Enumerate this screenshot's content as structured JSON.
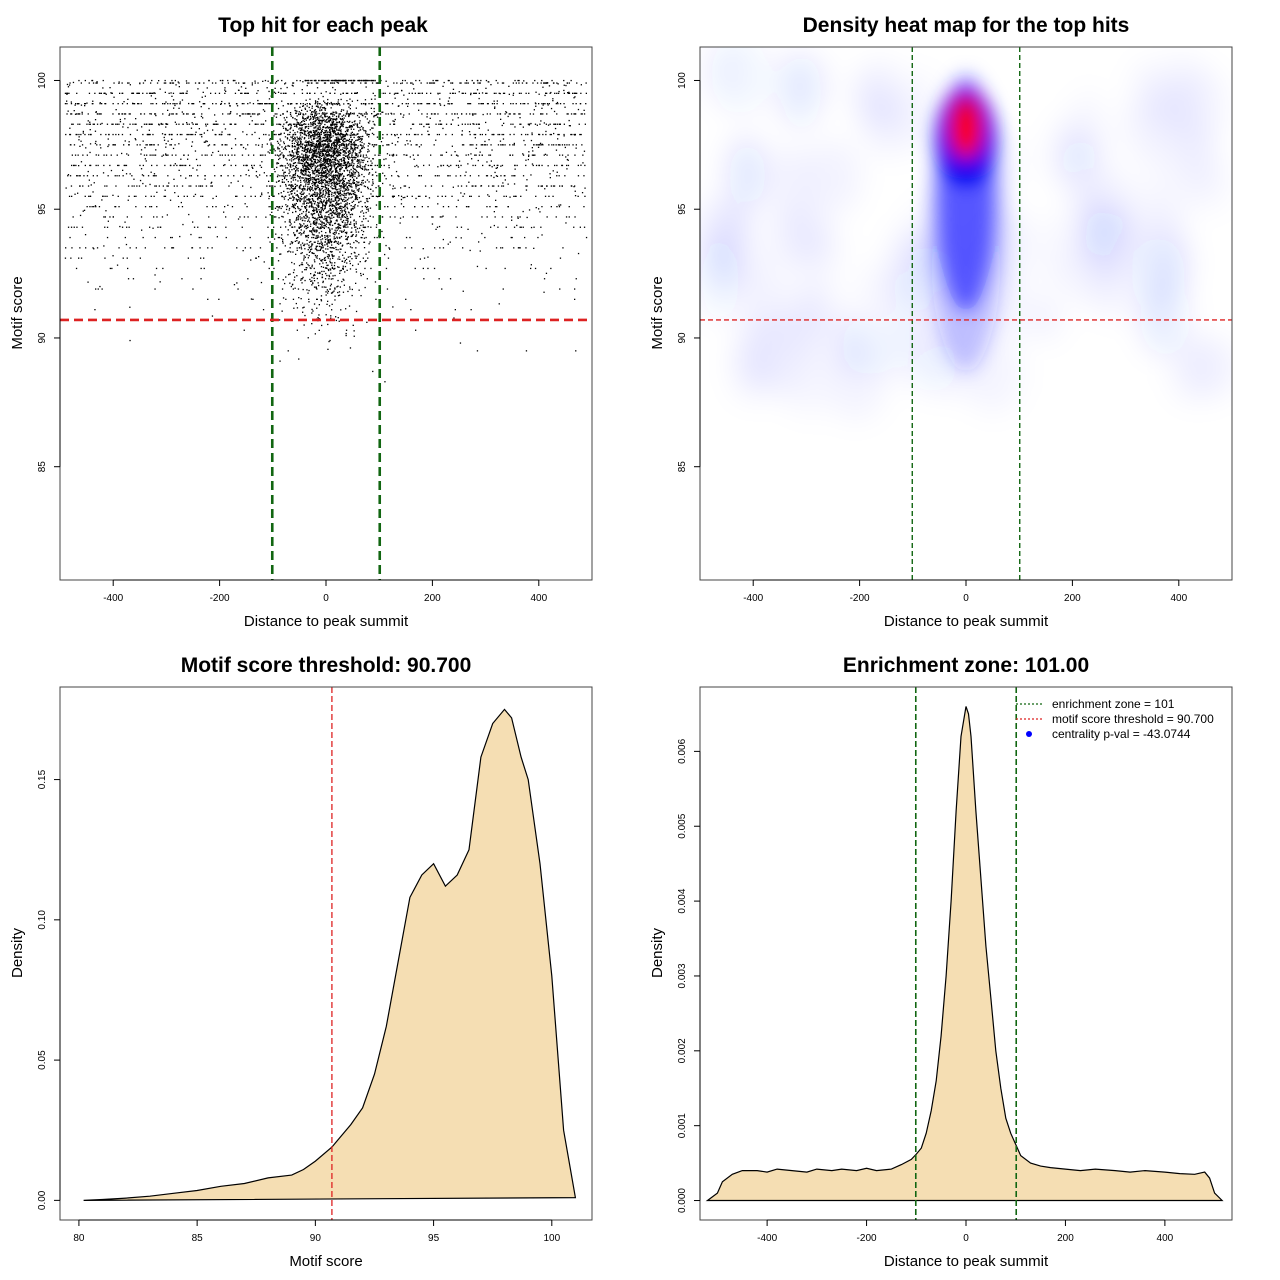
{
  "chart_data": [
    {
      "type": "scatter",
      "title": "Top hit for each peak",
      "xlabel": "Distance to peak summit",
      "ylabel": "Motif score",
      "xlim": [
        -500,
        500
      ],
      "ylim": [
        80.6,
        101.3
      ],
      "xticks": [
        "-400",
        "-200",
        "0",
        "200",
        "400"
      ],
      "yticks": [
        "85",
        "90",
        "95",
        "100"
      ],
      "hlines": [
        {
          "y": 90.7,
          "color": "#dd2222",
          "style": "dashed"
        }
      ],
      "vlines": [
        {
          "x": -101,
          "color": "#116611",
          "style": "dashed"
        },
        {
          "x": 101,
          "color": "#116611",
          "style": "dashed"
        }
      ],
      "points_note": "thousands of points, densest near x = 0 and score 93-100",
      "grid": false
    },
    {
      "type": "heatmap",
      "title": "Density heat map for the top hits",
      "xlabel": "Distance to peak summit",
      "ylabel": "Motif score",
      "xlim": [
        -500,
        500
      ],
      "ylim": [
        80.6,
        101.3
      ],
      "xticks": [
        "-400",
        "-200",
        "0",
        "200",
        "400"
      ],
      "yticks": [
        "85",
        "90",
        "95",
        "100"
      ],
      "color_scale": [
        "#ffffff",
        "#0000ff",
        "#ff0000"
      ],
      "peak": {
        "x": 0,
        "y": 98.2
      },
      "hlines": [
        {
          "y": 90.7,
          "color": "#dd2222",
          "style": "dashed"
        }
      ],
      "vlines": [
        {
          "x": -101,
          "color": "#116611",
          "style": "dashed"
        },
        {
          "x": 101,
          "color": "#116611",
          "style": "dashed"
        }
      ],
      "grid": false
    },
    {
      "type": "area",
      "title": "Motif score threshold: 90.700",
      "xlabel": "Motif score",
      "ylabel": "Density",
      "xlim": [
        79.2,
        101.7
      ],
      "ylim": [
        -0.007,
        0.183
      ],
      "xticks": [
        "80",
        "85",
        "90",
        "95",
        "100"
      ],
      "yticks": [
        "0.00",
        "0.05",
        "0.10",
        "0.15"
      ],
      "fill": "#f5deb3",
      "x": [
        80.2,
        81.0,
        82.0,
        83.0,
        84.0,
        85.0,
        86.0,
        87.0,
        88.0,
        89.0,
        89.5,
        90.0,
        90.7,
        91.0,
        91.5,
        92.0,
        92.5,
        93.0,
        93.5,
        94.0,
        94.5,
        95.0,
        95.5,
        96.0,
        96.5,
        97.0,
        97.5,
        98.0,
        98.3,
        98.7,
        99.0,
        99.5,
        100.0,
        100.5,
        101.0
      ],
      "y": [
        0.0,
        0.0003,
        0.0008,
        0.0015,
        0.0025,
        0.0035,
        0.005,
        0.006,
        0.008,
        0.009,
        0.011,
        0.014,
        0.019,
        0.022,
        0.027,
        0.033,
        0.045,
        0.062,
        0.085,
        0.108,
        0.116,
        0.12,
        0.112,
        0.116,
        0.125,
        0.158,
        0.17,
        0.175,
        0.172,
        0.158,
        0.15,
        0.12,
        0.08,
        0.025,
        0.001
      ],
      "vlines": [
        {
          "x": 90.7,
          "color": "#dd2222",
          "style": "dashed"
        }
      ],
      "grid": false
    },
    {
      "type": "area",
      "title": "Enrichment zone: 101.00",
      "xlabel": "Distance to peak summit",
      "ylabel": "Density",
      "xlim": [
        -535,
        535
      ],
      "ylim": [
        -0.00026,
        0.00686
      ],
      "xticks": [
        "-400",
        "-200",
        "0",
        "200",
        "400"
      ],
      "yticks": [
        "0.000",
        "0.001",
        "0.002",
        "0.003",
        "0.004",
        "0.005",
        "0.006"
      ],
      "fill": "#f5deb3",
      "x": [
        -520,
        -500,
        -490,
        -470,
        -450,
        -420,
        -400,
        -380,
        -350,
        -320,
        -300,
        -270,
        -250,
        -220,
        -200,
        -180,
        -150,
        -130,
        -110,
        -100,
        -90,
        -80,
        -70,
        -60,
        -50,
        -40,
        -30,
        -20,
        -10,
        0,
        5,
        10,
        20,
        30,
        40,
        50,
        60,
        70,
        80,
        90,
        100,
        110,
        130,
        150,
        170,
        200,
        230,
        260,
        300,
        330,
        360,
        400,
        430,
        460,
        480,
        490,
        500,
        515
      ],
      "y": [
        0.0,
        0.0001,
        0.00025,
        0.00035,
        0.0004,
        0.0004,
        0.00038,
        0.00042,
        0.0004,
        0.00038,
        0.00042,
        0.0004,
        0.00042,
        0.0004,
        0.00043,
        0.0004,
        0.00042,
        0.00048,
        0.00055,
        0.00062,
        0.0007,
        0.0009,
        0.0012,
        0.0016,
        0.0022,
        0.003,
        0.004,
        0.0052,
        0.0062,
        0.0066,
        0.0065,
        0.0062,
        0.0052,
        0.0043,
        0.0034,
        0.0027,
        0.002,
        0.0015,
        0.0011,
        0.0009,
        0.00075,
        0.0006,
        0.0005,
        0.00046,
        0.00044,
        0.00042,
        0.0004,
        0.00042,
        0.0004,
        0.00038,
        0.0004,
        0.00038,
        0.00036,
        0.00035,
        0.00038,
        0.0003,
        0.0001,
        0.0
      ],
      "vlines": [
        {
          "x": -101,
          "color": "#116611",
          "style": "dashed"
        },
        {
          "x": 101,
          "color": "#116611",
          "style": "dashed"
        }
      ],
      "legend": {
        "position": "top-right",
        "entries": [
          {
            "label": "enrichment zone = 101",
            "color": "#116611",
            "kind": "dotted-line"
          },
          {
            "label": "motif score threshold = 90.700",
            "color": "#dd2222",
            "kind": "dotted-line"
          },
          {
            "label": "centrality p-val = -43.0744",
            "color": "#0000ff",
            "kind": "point"
          }
        ]
      },
      "grid": false
    }
  ]
}
